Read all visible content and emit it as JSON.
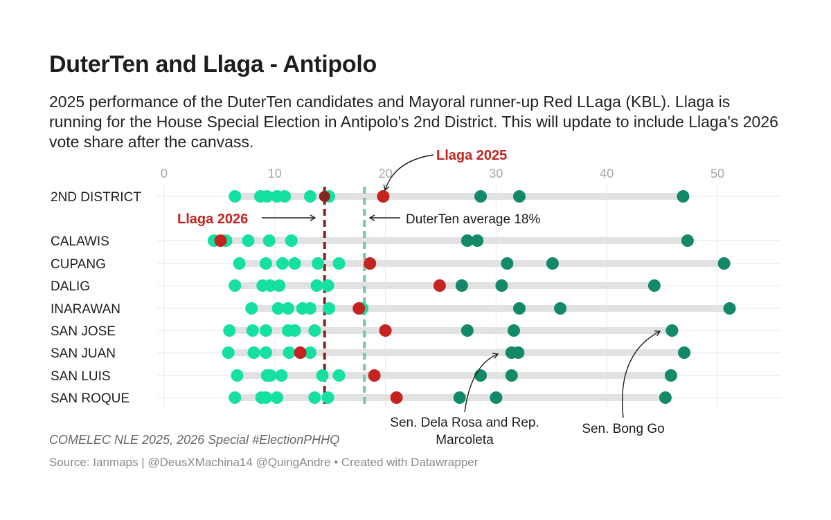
{
  "title": "DuterTen and Llaga - Antipolo",
  "description": "2025 performance of the DuterTen candidates and Mayoral runner-up Red LLaga (KBL). Llaga is running for the House Special Election in Antipolo's 2nd District. This will update to include Llaga's 2026 vote share after the canvass.",
  "notes": "COMELEC NLE 2025, 2026 Special #ElectionPHHQ",
  "source": "Source: Ianmaps | @DeusXMachina14 @QuingAndre • Created with Datawrapper",
  "colors": {
    "duterten_light": "#14e0a2",
    "duterten_dark": "#13896a",
    "llaga_2025": "#c4231f",
    "llaga_2026_line": "#8b2320",
    "average_line": "#76c4b2",
    "range_bar": "#e2e2e2",
    "gridline": "#ebebeb"
  },
  "chart_data": {
    "type": "scatter",
    "xlim": [
      0,
      55
    ],
    "xticks": [
      0,
      10,
      20,
      30,
      40,
      50
    ],
    "xtick_labels": [
      "0",
      "10",
      "20",
      "30",
      "40",
      "50"
    ],
    "duterten_average": 18.1,
    "llaga_2026": 14.5,
    "rows": [
      {
        "label": "2ND DISTRICT",
        "light": [
          6.4,
          8.7,
          9.3,
          10.2,
          10.9,
          13.2,
          14.9
        ],
        "dark": [
          28.6,
          32.1,
          46.9
        ],
        "llaga_2025": 19.8,
        "llaga_2026": 14.5
      },
      {
        "label": "CALAWIS",
        "light": [
          4.5,
          5.6,
          7.6,
          9.5,
          11.5
        ],
        "dark": [
          27.4,
          28.3,
          47.3
        ],
        "llaga_2025": 5.1
      },
      {
        "label": "CUPANG",
        "light": [
          6.8,
          9.2,
          10.7,
          11.8,
          13.9,
          15.8
        ],
        "dark": [
          31.0,
          35.1,
          50.6
        ],
        "llaga_2025": 18.6
      },
      {
        "label": "DALIG",
        "light": [
          6.4,
          8.9,
          9.6,
          10.4,
          13.8,
          14.8
        ],
        "dark": [
          26.9,
          30.5,
          44.3
        ],
        "llaga_2025": 24.9
      },
      {
        "label": "INARAWAN",
        "light": [
          7.9,
          10.3,
          11.2,
          12.5,
          13.2,
          14.9,
          17.9
        ],
        "dark": [
          32.1,
          35.8,
          51.1
        ],
        "llaga_2025": 17.6
      },
      {
        "label": "SAN JOSE",
        "light": [
          5.9,
          8.0,
          9.2,
          11.2,
          11.8,
          13.6
        ],
        "dark": [
          27.4,
          31.6,
          45.9
        ],
        "llaga_2025": 20.0
      },
      {
        "label": "SAN JUAN",
        "light": [
          5.8,
          8.1,
          9.2,
          11.3,
          13.2
        ],
        "dark": [
          31.4,
          32.0,
          47.0
        ],
        "llaga_2025": 12.3
      },
      {
        "label": "SAN LUIS",
        "light": [
          6.6,
          9.3,
          9.6,
          10.6,
          14.3,
          15.8
        ],
        "dark": [
          28.6,
          31.4,
          45.8
        ],
        "llaga_2025": 19.0
      },
      {
        "label": "SAN ROQUE",
        "light": [
          6.4,
          8.8,
          9.2,
          10.2,
          13.6,
          14.8
        ],
        "dark": [
          26.7,
          30.0,
          45.3
        ],
        "llaga_2025": 21.0
      }
    ],
    "annotations": {
      "llaga_2025": "Llaga 2025",
      "llaga_2026": "Llaga 2026",
      "duterten_average": "DuterTen average 18%",
      "dela_rosa_marcoleta": [
        "Sen. Dela Rosa and Rep.",
        "Marcoleta"
      ],
      "bong_go": "Sen. Bong Go"
    }
  }
}
